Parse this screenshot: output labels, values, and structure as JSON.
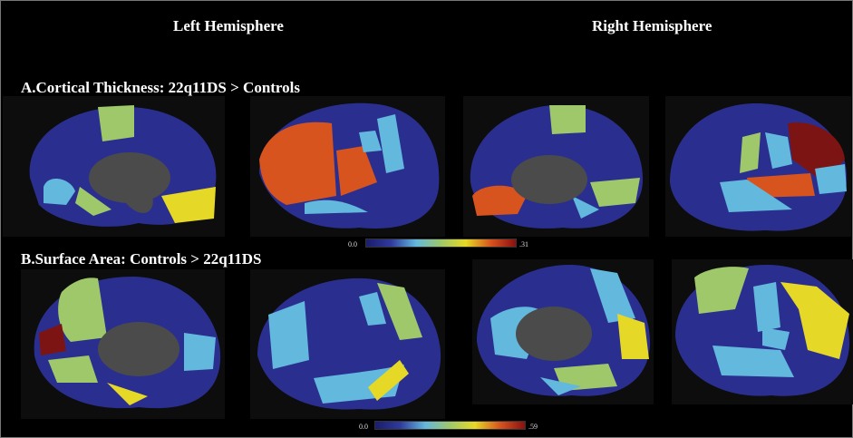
{
  "headers": {
    "left": "Left Hemisphere",
    "right": "Right Hemisphere"
  },
  "sections": {
    "a": {
      "title": "A.Cortical Thickness: 22q11DS > Controls",
      "scale_min": "0.0",
      "scale_max": ".31"
    },
    "b": {
      "title": "B.Surface Area: Controls > 22q11DS",
      "scale_min": "0.0",
      "scale_max": ".59"
    }
  },
  "colors": {
    "background": "#000000",
    "base": "#2a2f8f",
    "light_blue": "#63b8dd",
    "green": "#9fc86a",
    "yellow": "#e6d826",
    "orange": "#d7541e",
    "dark_red": "#7d1414",
    "gray": "#4b4b4b"
  }
}
